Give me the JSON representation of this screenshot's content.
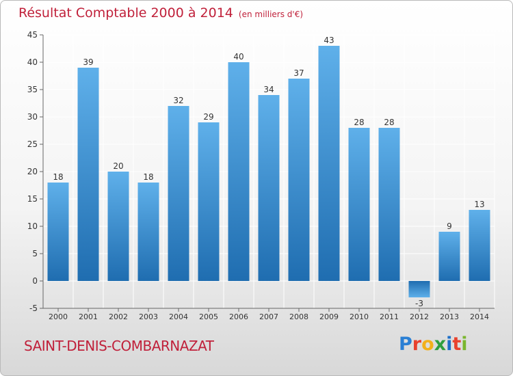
{
  "header": {
    "title": "Résultat Comptable 2000 à 2014",
    "unit": "(en milliers d'€)"
  },
  "footer": {
    "commune": "SAINT-DENIS-COMBARNAZAT",
    "brand_letters": [
      "P",
      "r",
      "o",
      "x",
      "i",
      "t",
      "i"
    ],
    "brand_colors": [
      "#2a7fd4",
      "#e8412e",
      "#f2b01c",
      "#2e9e3e",
      "#1d6fc8",
      "#e8412e",
      "#7ab62e"
    ]
  },
  "colors": {
    "bar_top": "#5fb0ea",
    "bar_bottom": "#1f6db0",
    "axis": "#666666",
    "grid": "#ffffff",
    "text": "#333333",
    "accent": "#c0203a"
  },
  "chart_data": {
    "type": "bar",
    "title": "Résultat Comptable 2000 à 2014",
    "xlabel": "",
    "ylabel": "",
    "categories": [
      "2000",
      "2001",
      "2002",
      "2003",
      "2004",
      "2005",
      "2006",
      "2007",
      "2008",
      "2009",
      "2010",
      "2011",
      "2012",
      "2013",
      "2014"
    ],
    "values": [
      18,
      39,
      20,
      18,
      32,
      29,
      40,
      34,
      37,
      43,
      28,
      28,
      -3,
      9,
      13
    ],
    "ylim": [
      -5,
      45
    ],
    "yticks": [
      -5,
      0,
      5,
      10,
      15,
      20,
      25,
      30,
      35,
      40,
      45
    ],
    "grid": true
  }
}
